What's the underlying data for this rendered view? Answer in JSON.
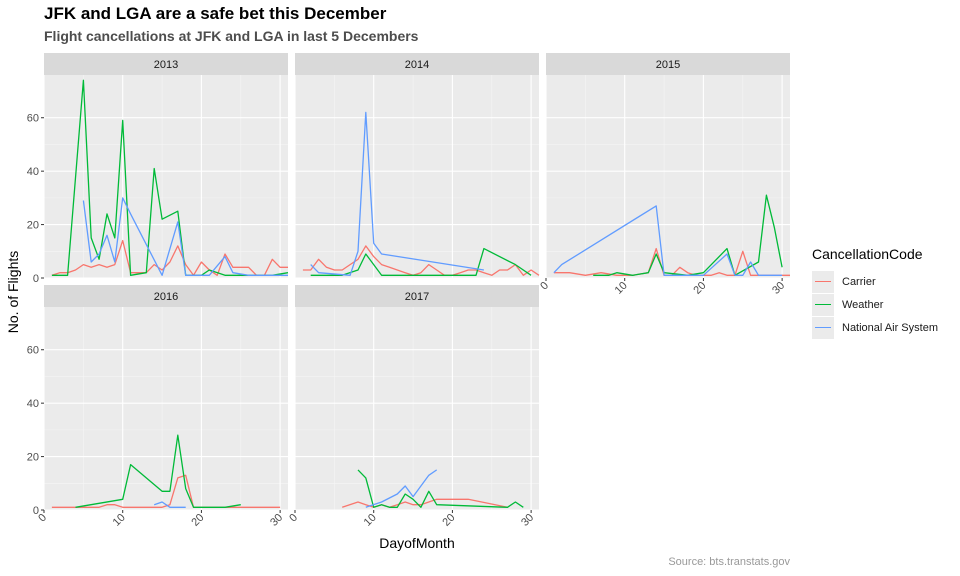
{
  "title": "JFK and LGA are a safe bet this December",
  "subtitle": "Flight cancellations at JFK and LGA in last 5 Decembers",
  "caption": "Source: bts.transtats.gov",
  "legend": {
    "title": "CancellationCode",
    "items": [
      {
        "label": "Carrier",
        "color": "#F8766D"
      },
      {
        "label": "Weather",
        "color": "#00BA38"
      },
      {
        "label": "National Air System",
        "color": "#619CFF"
      }
    ]
  },
  "chart_data": {
    "type": "line",
    "facet_by": "year",
    "xlabel": "DayofMonth",
    "ylabel": "No. of Flights",
    "x_ticks": [
      0,
      10,
      20,
      30
    ],
    "y_ticks": [
      0,
      20,
      40,
      60
    ],
    "xlim": [
      0,
      31
    ],
    "ylim": [
      0,
      76
    ],
    "grid": true,
    "legend_position": "right",
    "panels": [
      {
        "label": "2013",
        "series": [
          {
            "name": "Carrier",
            "x": [
              1,
              2,
              3,
              4,
              5,
              6,
              7,
              8,
              9,
              10,
              11,
              12,
              13,
              14,
              15,
              16,
              17,
              18,
              19,
              20,
              21,
              22,
              23,
              24,
              25,
              26,
              27,
              28,
              29,
              30,
              31
            ],
            "y": [
              1,
              2,
              2,
              3,
              5,
              4,
              5,
              4,
              5,
              14,
              2,
              2,
              2,
              5,
              3,
              6,
              12,
              5,
              1,
              6,
              3,
              1,
              9,
              4,
              4,
              4,
              1,
              1,
              7,
              4,
              4
            ]
          },
          {
            "name": "Weather",
            "x": [
              1,
              3,
              5,
              6,
              7,
              8,
              9,
              10,
              11,
              13,
              14,
              15,
              17,
              18,
              20,
              21,
              23,
              26,
              29,
              31
            ],
            "y": [
              1,
              1,
              74,
              15,
              7,
              24,
              15,
              59,
              1,
              2,
              41,
              22,
              25,
              1,
              1,
              3,
              1,
              1,
              1,
              2
            ]
          },
          {
            "name": "National Air System",
            "x": [
              5,
              6,
              7,
              8,
              9,
              10,
              11,
              15,
              17,
              18,
              20,
              21,
              23,
              24,
              26,
              31
            ],
            "y": [
              29,
              6,
              9,
              16,
              6,
              30,
              24,
              1,
              21,
              1,
              1,
              1,
              8,
              2,
              1,
              1
            ]
          }
        ]
      },
      {
        "label": "2014",
        "series": [
          {
            "name": "Carrier",
            "x": [
              1,
              2,
              3,
              4,
              5,
              6,
              7,
              8,
              9,
              10,
              11,
              12,
              13,
              14,
              15,
              16,
              17,
              18,
              19,
              20,
              21,
              22,
              23,
              24,
              25,
              26,
              27,
              28,
              29,
              30,
              31
            ],
            "y": [
              3,
              3,
              7,
              4,
              3,
              3,
              5,
              7,
              12,
              8,
              5,
              4,
              3,
              2,
              1,
              2,
              5,
              3,
              1,
              1,
              2,
              3,
              3,
              2,
              1,
              3,
              3,
              5,
              1,
              3,
              1
            ]
          },
          {
            "name": "Weather",
            "x": [
              2,
              3,
              6,
              8,
              9,
              11,
              16,
              17,
              23,
              24,
              28,
              30
            ],
            "y": [
              1,
              1,
              1,
              3,
              9,
              1,
              1,
              1,
              1,
              11,
              5,
              1
            ]
          },
          {
            "name": "National Air System",
            "x": [
              2,
              3,
              7,
              8,
              9,
              10,
              11,
              24
            ],
            "y": [
              5,
              2,
              1,
              10,
              62,
              13,
              9,
              3
            ]
          }
        ]
      },
      {
        "label": "2015",
        "series": [
          {
            "name": "Carrier",
            "x": [
              1,
              3,
              5,
              7,
              9,
              11,
              13,
              14,
              15,
              16,
              17,
              18,
              19,
              20,
              21,
              22,
              23,
              24,
              25,
              26,
              27,
              28,
              29,
              30,
              31
            ],
            "y": [
              2,
              2,
              1,
              2,
              1,
              1,
              2,
              11,
              1,
              1,
              4,
              2,
              1,
              1,
              1,
              2,
              1,
              1,
              10,
              1,
              1,
              1,
              1,
              1,
              1
            ]
          },
          {
            "name": "Weather",
            "x": [
              6,
              8,
              9,
              11,
              13,
              14,
              15,
              18,
              20,
              23,
              24,
              27,
              28,
              29,
              30
            ],
            "y": [
              1,
              1,
              2,
              1,
              2,
              9,
              2,
              1,
              2,
              11,
              1,
              6,
              31,
              19,
              4
            ]
          },
          {
            "name": "National Air System",
            "x": [
              1,
              2,
              14,
              15,
              16,
              17,
              18,
              19,
              20,
              23,
              24,
              25,
              26,
              27,
              30
            ],
            "y": [
              2,
              5,
              27,
              1,
              1,
              1,
              1,
              1,
              1,
              9,
              1,
              1,
              6,
              1,
              1
            ]
          }
        ]
      },
      {
        "label": "2016",
        "series": [
          {
            "name": "Carrier",
            "x": [
              1,
              2,
              3,
              4,
              5,
              6,
              7,
              8,
              9,
              10,
              11,
              12,
              13,
              14,
              15,
              16,
              17,
              18,
              19,
              20,
              21,
              22,
              23,
              24,
              25,
              26,
              27,
              28,
              29,
              30
            ],
            "y": [
              1,
              1,
              1,
              1,
              1,
              1,
              1,
              2,
              2,
              1,
              1,
              1,
              1,
              1,
              1,
              2,
              12,
              13,
              1,
              1,
              1,
              1,
              1,
              1,
              1,
              1,
              1,
              1,
              1,
              1
            ]
          },
          {
            "name": "Weather",
            "x": [
              4,
              10,
              11,
              15,
              16,
              17,
              18,
              19,
              23,
              25
            ],
            "y": [
              1,
              4,
              17,
              7,
              7,
              28,
              8,
              1,
              1,
              2
            ]
          },
          {
            "name": "National Air System",
            "x": [
              14,
              15,
              16,
              18
            ],
            "y": [
              2,
              3,
              1,
              1
            ]
          }
        ]
      },
      {
        "label": "2017",
        "series": [
          {
            "name": "Carrier",
            "x": [
              6,
              8,
              9,
              10,
              11,
              12,
              13,
              14,
              15,
              16,
              17,
              18,
              22,
              27
            ],
            "y": [
              1,
              3,
              2,
              1,
              2,
              1,
              2,
              3,
              2,
              2,
              3,
              4,
              4,
              1
            ]
          },
          {
            "name": "Weather",
            "x": [
              8,
              9,
              10,
              11,
              12,
              13,
              14,
              15,
              16,
              17,
              18,
              27,
              28,
              29
            ],
            "y": [
              15,
              12,
              1,
              2,
              1,
              1,
              6,
              4,
              1,
              7,
              2,
              1,
              3,
              1
            ]
          },
          {
            "name": "National Air System",
            "x": [
              9,
              11,
              13,
              14,
              15,
              17,
              18
            ],
            "y": [
              1,
              3,
              6,
              9,
              5,
              13,
              15
            ]
          }
        ]
      }
    ]
  }
}
